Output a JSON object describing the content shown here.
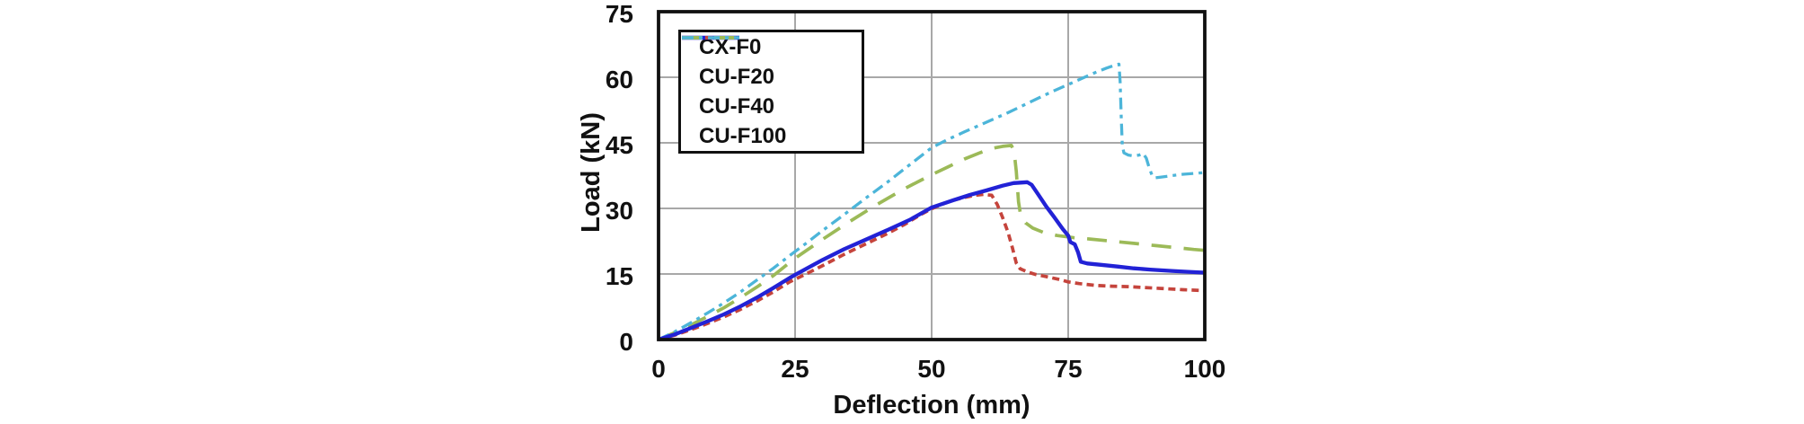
{
  "figure": {
    "background": "#ffffff"
  },
  "chart_data": {
    "type": "line",
    "title": "",
    "xlabel": "Deflection (mm)",
    "ylabel": "Load (kN)",
    "xlim": [
      0,
      100
    ],
    "ylim": [
      0,
      75
    ],
    "xticks": [
      "0",
      "25",
      "50",
      "75",
      "100"
    ],
    "yticks": [
      "0",
      "15",
      "30",
      "45",
      "60",
      "75"
    ],
    "grid": true,
    "legend_position": "top-left",
    "colors": {
      "frame": "#111111",
      "grid": "#a8a8a8",
      "text": "#111111",
      "background": "#ffffff"
    },
    "series": [
      {
        "name": "CX-F0",
        "color": "#2222d6",
        "dash": "solid",
        "width": 4.3,
        "points": [
          [
            0,
            0
          ],
          [
            3,
            1.2
          ],
          [
            6,
            2.7
          ],
          [
            9,
            4.2
          ],
          [
            12,
            5.8
          ],
          [
            15,
            7.6
          ],
          [
            18,
            9.6
          ],
          [
            21,
            11.8
          ],
          [
            24,
            14.1
          ],
          [
            26,
            15.5
          ],
          [
            30,
            18.2
          ],
          [
            34,
            20.7
          ],
          [
            38,
            22.9
          ],
          [
            42,
            25.1
          ],
          [
            46,
            27.4
          ],
          [
            50,
            30.2
          ],
          [
            54,
            31.9
          ],
          [
            57,
            33.1
          ],
          [
            60,
            34.1
          ],
          [
            63,
            35.2
          ],
          [
            65,
            35.8
          ],
          [
            67.5,
            36
          ],
          [
            68.3,
            35.4
          ],
          [
            69.5,
            33.2
          ],
          [
            71,
            30.4
          ],
          [
            72.5,
            27.9
          ],
          [
            74,
            25.3
          ],
          [
            75,
            23.8
          ],
          [
            75.4,
            22.3
          ],
          [
            76.2,
            21.8
          ],
          [
            76.8,
            20
          ],
          [
            77.3,
            17.8
          ],
          [
            78.5,
            17.4
          ],
          [
            81,
            17.1
          ],
          [
            84,
            16.7
          ],
          [
            87,
            16.3
          ],
          [
            90,
            16
          ],
          [
            94,
            15.7
          ],
          [
            97,
            15.5
          ],
          [
            100,
            15.3
          ]
        ]
      },
      {
        "name": "CU-F20",
        "color": "#c5443c",
        "dash": "8 5",
        "width": 3.7,
        "points": [
          [
            0,
            0
          ],
          [
            3,
            1
          ],
          [
            6,
            2.3
          ],
          [
            9,
            3.7
          ],
          [
            12,
            5.2
          ],
          [
            15,
            6.9
          ],
          [
            18,
            8.8
          ],
          [
            21,
            10.9
          ],
          [
            24,
            13.2
          ],
          [
            27,
            15
          ],
          [
            30,
            16.9
          ],
          [
            34,
            19.5
          ],
          [
            38,
            21.9
          ],
          [
            42,
            24.3
          ],
          [
            45,
            26.3
          ],
          [
            48,
            28.6
          ],
          [
            50,
            29.9
          ],
          [
            52,
            31
          ],
          [
            54,
            31.9
          ],
          [
            56,
            32.5
          ],
          [
            58,
            33
          ],
          [
            59.5,
            33.2
          ],
          [
            61,
            33
          ],
          [
            62,
            30.9
          ],
          [
            63,
            27.9
          ],
          [
            64,
            24.5
          ],
          [
            64.8,
            20.9
          ],
          [
            65.5,
            17.5
          ],
          [
            66.2,
            16.2
          ],
          [
            67.5,
            15.5
          ],
          [
            69,
            14.9
          ],
          [
            71,
            14.4
          ],
          [
            73.5,
            13.7
          ],
          [
            75,
            13.2
          ],
          [
            77,
            12.8
          ],
          [
            80,
            12.4
          ],
          [
            83,
            12.2
          ],
          [
            86,
            12.1
          ],
          [
            89,
            11.9
          ],
          [
            92,
            11.7
          ],
          [
            96,
            11.4
          ],
          [
            100,
            11.2
          ]
        ]
      },
      {
        "name": "CU-F40",
        "color": "#9cba58",
        "dash": "22 14",
        "width": 3.7,
        "points": [
          [
            0,
            0
          ],
          [
            3,
            1.6
          ],
          [
            6,
            3.4
          ],
          [
            9,
            5.3
          ],
          [
            12,
            7.3
          ],
          [
            15,
            9.6
          ],
          [
            18,
            12
          ],
          [
            21,
            14.6
          ],
          [
            25,
            18.6
          ],
          [
            30,
            22.9
          ],
          [
            35,
            27
          ],
          [
            40,
            30.9
          ],
          [
            45,
            34.5
          ],
          [
            50,
            37.7
          ],
          [
            53,
            39.5
          ],
          [
            56,
            41.3
          ],
          [
            59,
            42.8
          ],
          [
            61,
            43.7
          ],
          [
            63,
            44.2
          ],
          [
            64.6,
            44.4
          ],
          [
            65.1,
            43
          ],
          [
            65.5,
            38.5
          ],
          [
            65.9,
            31.5
          ],
          [
            66.3,
            28.4
          ],
          [
            67.2,
            26.7
          ],
          [
            68.5,
            25.5
          ],
          [
            70.5,
            24.5
          ],
          [
            73,
            23.8
          ],
          [
            76,
            23.3
          ],
          [
            79,
            23
          ],
          [
            83,
            22.5
          ],
          [
            87,
            22
          ],
          [
            91,
            21.5
          ],
          [
            95,
            21
          ],
          [
            98,
            20.6
          ],
          [
            100,
            20.4
          ]
        ]
      },
      {
        "name": "CU-F100",
        "color": "#4cb5d9",
        "dash": "13 6 4 6",
        "width": 3.3,
        "points": [
          [
            0,
            0
          ],
          [
            3,
            1.8
          ],
          [
            6,
            3.9
          ],
          [
            9,
            6.1
          ],
          [
            12,
            8.4
          ],
          [
            15,
            10.9
          ],
          [
            18,
            13.6
          ],
          [
            21,
            16.3
          ],
          [
            24,
            19.2
          ],
          [
            27,
            22
          ],
          [
            30,
            24.9
          ],
          [
            34,
            28.6
          ],
          [
            38,
            32.4
          ],
          [
            42,
            36.1
          ],
          [
            46,
            40
          ],
          [
            50,
            43.9
          ],
          [
            53,
            45.8
          ],
          [
            56,
            47.5
          ],
          [
            60,
            49.7
          ],
          [
            64,
            51.9
          ],
          [
            68,
            54.3
          ],
          [
            72,
            56.7
          ],
          [
            76,
            58.9
          ],
          [
            78,
            60
          ],
          [
            80,
            61.1
          ],
          [
            82,
            62.1
          ],
          [
            83.6,
            62.8
          ],
          [
            84.3,
            63
          ],
          [
            84.5,
            59
          ],
          [
            84.7,
            51
          ],
          [
            84.9,
            44.5
          ],
          [
            85.2,
            42.7
          ],
          [
            86,
            42.2
          ],
          [
            87,
            42
          ],
          [
            88,
            42.2
          ],
          [
            88.7,
            42.6
          ],
          [
            89.3,
            41.5
          ],
          [
            89.8,
            39.4
          ],
          [
            90.4,
            37.4
          ],
          [
            91,
            37
          ],
          [
            92.2,
            37.2
          ],
          [
            94,
            37.5
          ],
          [
            96,
            37.8
          ],
          [
            98,
            38
          ],
          [
            100,
            38.2
          ]
        ]
      }
    ]
  }
}
